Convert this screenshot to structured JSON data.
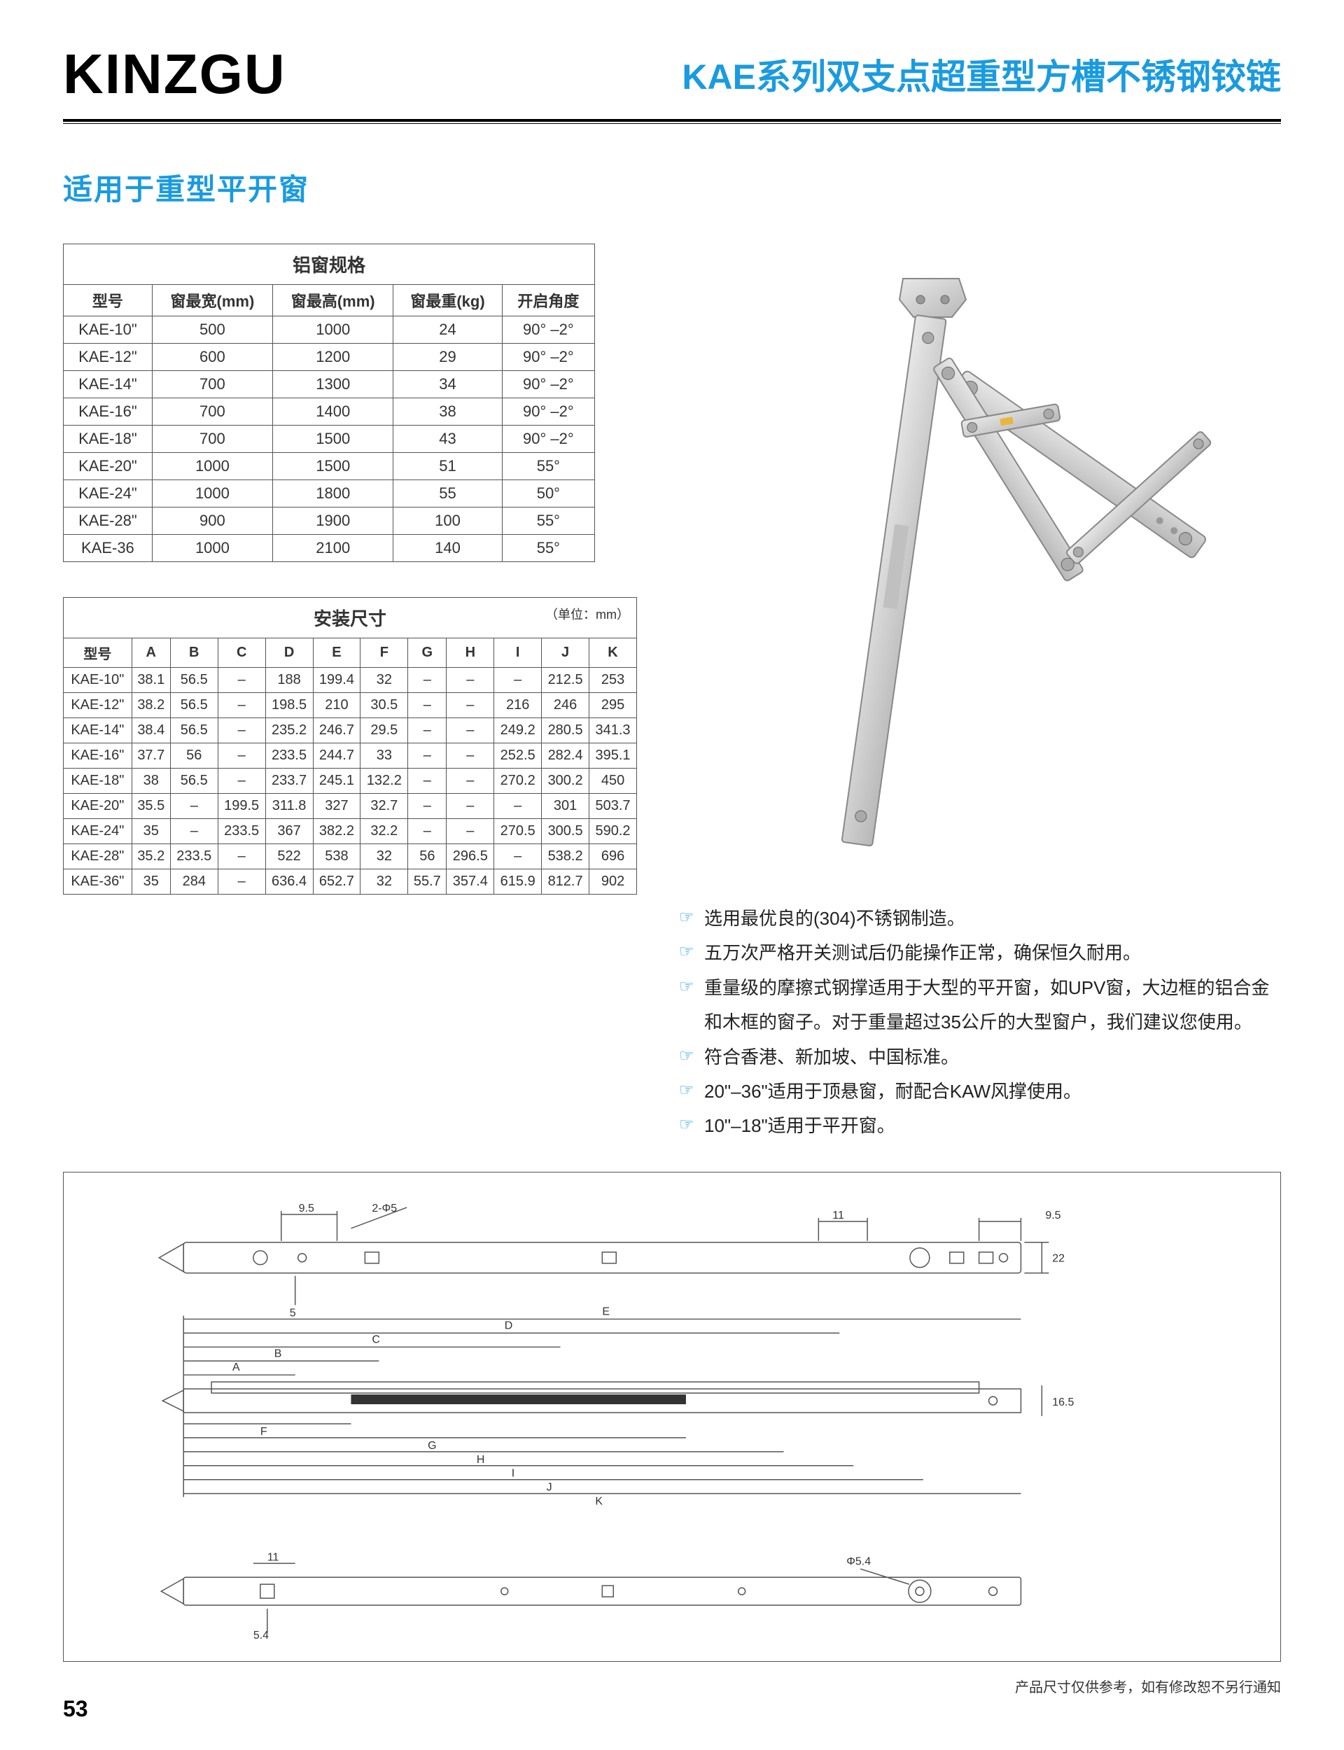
{
  "brand": "KINZGU",
  "series_title": "KAE系列双支点超重型方槽不锈钢铰链",
  "subtitle": "适用于重型平开窗",
  "page_num": "53",
  "footnote": "产品尺寸仅供参考，如有修改恕不另行通知",
  "table1": {
    "title": "铝窗规格",
    "columns": [
      "型号",
      "窗最宽(mm)",
      "窗最高(mm)",
      "窗最重(kg)",
      "开启角度"
    ],
    "rows": [
      [
        "KAE-10\"",
        "500",
        "1000",
        "24",
        "90° –2°"
      ],
      [
        "KAE-12\"",
        "600",
        "1200",
        "29",
        "90° –2°"
      ],
      [
        "KAE-14\"",
        "700",
        "1300",
        "34",
        "90° –2°"
      ],
      [
        "KAE-16\"",
        "700",
        "1400",
        "38",
        "90° –2°"
      ],
      [
        "KAE-18\"",
        "700",
        "1500",
        "43",
        "90° –2°"
      ],
      [
        "KAE-20\"",
        "1000",
        "1500",
        "51",
        "55°"
      ],
      [
        "KAE-24\"",
        "1000",
        "1800",
        "55",
        "50°"
      ],
      [
        "KAE-28\"",
        "900",
        "1900",
        "100",
        "55°"
      ],
      [
        "KAE-36",
        "1000",
        "2100",
        "140",
        "55°"
      ]
    ]
  },
  "table2": {
    "title": "安装尺寸",
    "unit": "（单位：mm）",
    "columns": [
      "型号",
      "A",
      "B",
      "C",
      "D",
      "E",
      "F",
      "G",
      "H",
      "I",
      "J",
      "K"
    ],
    "rows": [
      [
        "KAE-10\"",
        "38.1",
        "56.5",
        "–",
        "188",
        "199.4",
        "32",
        "–",
        "–",
        "–",
        "212.5",
        "253"
      ],
      [
        "KAE-12\"",
        "38.2",
        "56.5",
        "–",
        "198.5",
        "210",
        "30.5",
        "–",
        "–",
        "216",
        "246",
        "295"
      ],
      [
        "KAE-14\"",
        "38.4",
        "56.5",
        "–",
        "235.2",
        "246.7",
        "29.5",
        "–",
        "–",
        "249.2",
        "280.5",
        "341.3"
      ],
      [
        "KAE-16\"",
        "37.7",
        "56",
        "–",
        "233.5",
        "244.7",
        "33",
        "–",
        "–",
        "252.5",
        "282.4",
        "395.1"
      ],
      [
        "KAE-18\"",
        "38",
        "56.5",
        "–",
        "233.7",
        "245.1",
        "132.2",
        "–",
        "–",
        "270.2",
        "300.2",
        "450"
      ],
      [
        "KAE-20\"",
        "35.5",
        "–",
        "199.5",
        "311.8",
        "327",
        "32.7",
        "–",
        "–",
        "–",
        "301",
        "503.7"
      ],
      [
        "KAE-24\"",
        "35",
        "–",
        "233.5",
        "367",
        "382.2",
        "32.2",
        "–",
        "–",
        "270.5",
        "300.5",
        "590.2"
      ],
      [
        "KAE-28\"",
        "35.2",
        "233.5",
        "–",
        "522",
        "538",
        "32",
        "56",
        "296.5",
        "–",
        "538.2",
        "696"
      ],
      [
        "KAE-36\"",
        "35",
        "284",
        "–",
        "636.4",
        "652.7",
        "32",
        "55.7",
        "357.4",
        "615.9",
        "812.7",
        "902"
      ]
    ]
  },
  "features": [
    "选用最优良的(304)不锈钢制造。",
    "五万次严格开关测试后仍能操作正常，确保恒久耐用。",
    "重量级的摩擦式钢撑适用于大型的平开窗，如UPV窗，大边框的铝合金和木框的窗子。对于重量超过35公斤的大型窗户，我们建议您使用。",
    "符合香港、新加坡、中国标准。",
    "20\"–36\"适用于顶悬窗，耐配合KAW风撑使用。",
    "10\"–18\"适用于平开窗。"
  ],
  "diagram": {
    "dims": {
      "d1": "9.5",
      "d2": "2-Φ5",
      "d3": "11",
      "d4": "9.5",
      "d5": "22",
      "d6": "5",
      "d7": "16.5",
      "d8": "11",
      "d9": "Φ5.4",
      "d10": "5.4"
    },
    "letters": [
      "A",
      "B",
      "C",
      "D",
      "E",
      "F",
      "G",
      "H",
      "I",
      "J",
      "K"
    ]
  }
}
